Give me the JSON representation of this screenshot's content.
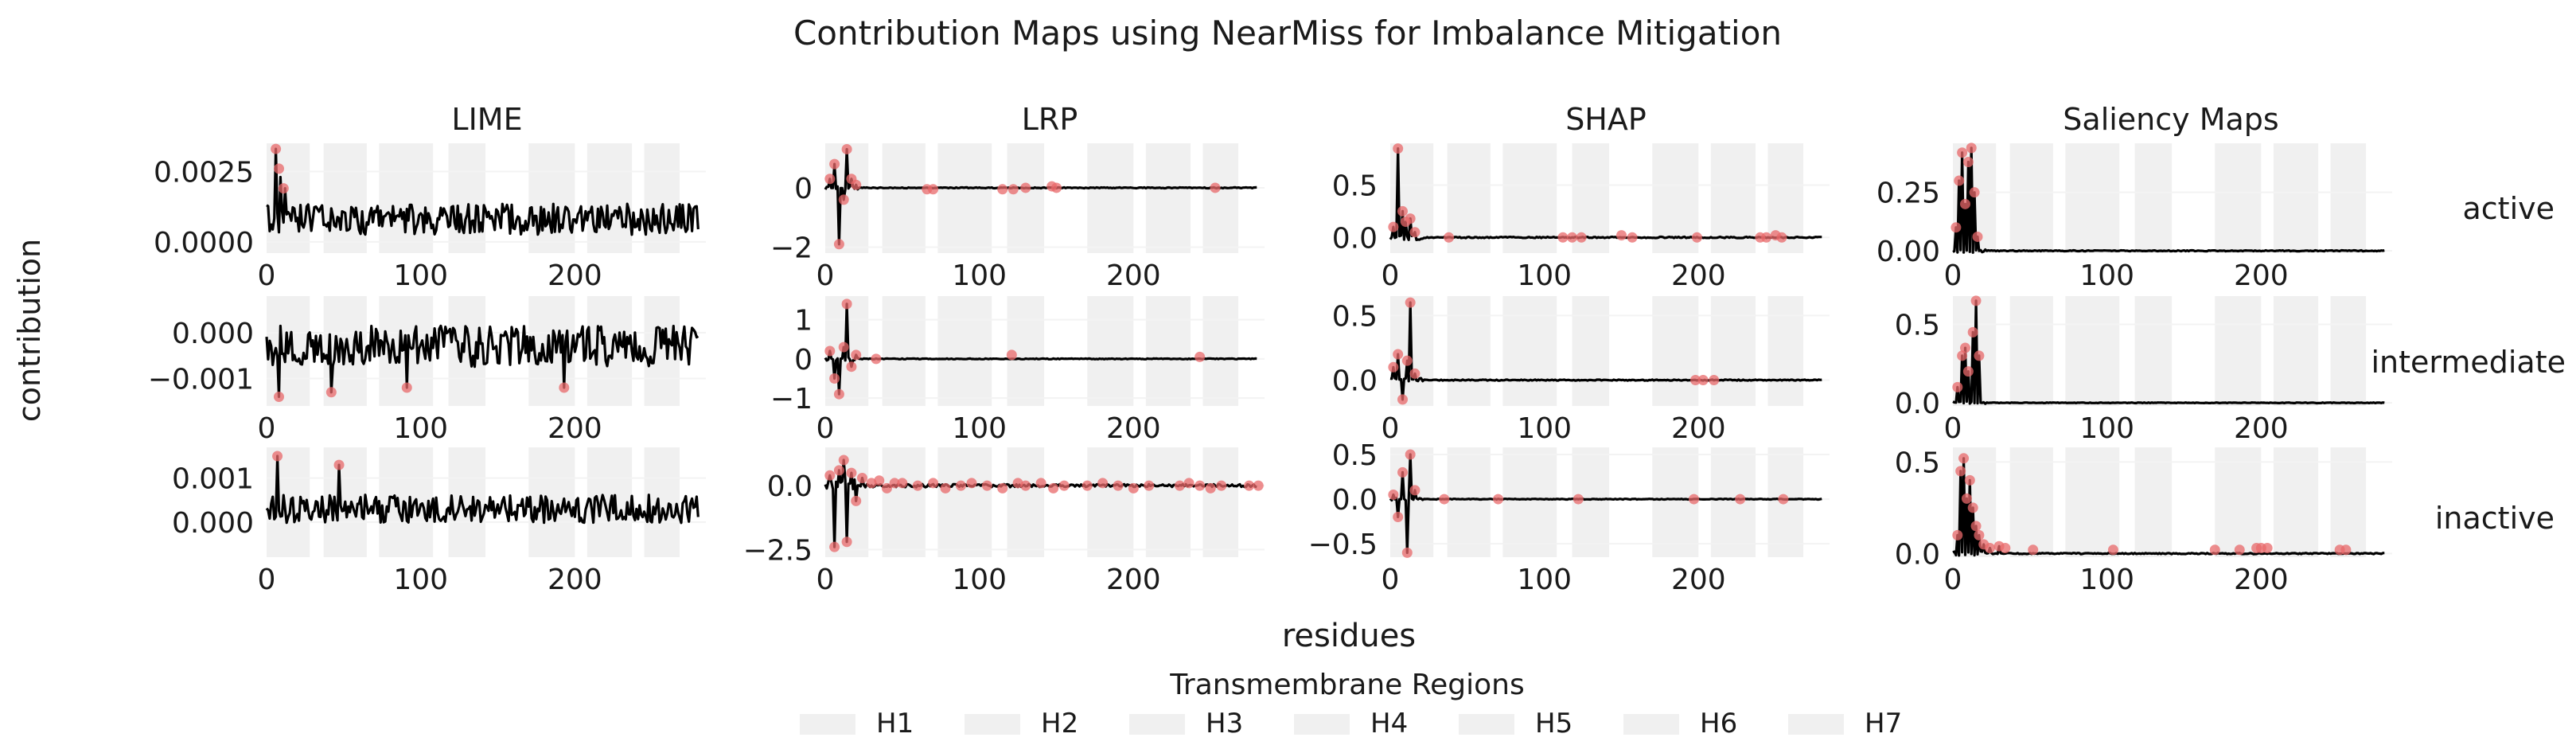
{
  "title": "Contribution Maps using NearMiss for Imbalance Mitigation",
  "xlabel": "residues",
  "ylabel": "contribution",
  "legend": {
    "title": "Transmembrane Regions",
    "entries": [
      "H1",
      "H2",
      "H3",
      "H4",
      "H5",
      "H6",
      "H7"
    ]
  },
  "colors": {
    "line": "#000000",
    "highlight": "#e8686a",
    "region": "#f0f0f0",
    "text": "#1a1a1a"
  },
  "chart_data": {
    "type": "line",
    "columns": [
      "LIME",
      "LRP",
      "SHAP",
      "Saliency Maps"
    ],
    "rows": [
      "active",
      "intermediate",
      "inactive"
    ],
    "xlim": [
      0,
      285
    ],
    "xticks": [
      0,
      100,
      200
    ],
    "transmembrane_regions": [
      {
        "name": "H1",
        "start": 0,
        "end": 28
      },
      {
        "name": "H2",
        "start": 37,
        "end": 65
      },
      {
        "name": "H3",
        "start": 73,
        "end": 108
      },
      {
        "name": "H4",
        "start": 118,
        "end": 142
      },
      {
        "name": "H5",
        "start": 170,
        "end": 200
      },
      {
        "name": "H6",
        "start": 208,
        "end": 237
      },
      {
        "name": "H7",
        "start": 245,
        "end": 268
      }
    ],
    "panels": [
      {
        "col": "LIME",
        "row": "active",
        "ylim": [
          -0.0004,
          0.0035
        ],
        "yticks": [
          0.0,
          0.0025
        ],
        "ytick_labels": [
          "0.0000",
          "0.0025"
        ],
        "seed": 11,
        "base": 0.0008,
        "noise": 0.00055,
        "decay": 1,
        "peaks": [
          [
            6,
            0.0033
          ],
          [
            9,
            0.0023
          ],
          [
            12,
            0.0019
          ]
        ],
        "highlights": [
          [
            6,
            0.0033
          ],
          [
            8,
            0.0026
          ],
          [
            11,
            0.0019
          ]
        ],
        "scale": 0.0004
      },
      {
        "col": "LRP",
        "row": "active",
        "ylim": [
          -2.2,
          1.5
        ],
        "yticks": [
          -2,
          0
        ],
        "ytick_labels": [
          "−2",
          "0"
        ],
        "seed": 12,
        "base": 0.0,
        "noise": 0.015,
        "decay": 0,
        "peaks": [
          [
            3,
            0.3
          ],
          [
            6,
            0.8
          ],
          [
            9,
            -1.9
          ],
          [
            12,
            -0.4
          ],
          [
            14,
            1.3
          ],
          [
            17,
            0.3
          ],
          [
            20,
            0.1
          ]
        ],
        "highlights": [
          [
            3,
            0.3
          ],
          [
            6,
            0.8
          ],
          [
            9,
            -1.9
          ],
          [
            12,
            -0.4
          ],
          [
            14,
            1.3
          ],
          [
            17,
            0.3
          ],
          [
            20,
            0.1
          ],
          [
            66,
            -0.05
          ],
          [
            70,
            -0.05
          ],
          [
            115,
            -0.05
          ],
          [
            122,
            -0.05
          ],
          [
            130,
            0.0
          ],
          [
            147,
            0.05
          ],
          [
            150,
            0.0
          ],
          [
            253,
            0.0
          ]
        ],
        "scale": 0.2
      },
      {
        "col": "SHAP",
        "row": "active",
        "ylim": [
          -0.15,
          0.9
        ],
        "yticks": [
          0.0,
          0.5
        ],
        "ytick_labels": [
          "0.0",
          "0.5"
        ],
        "seed": 13,
        "base": 0.0,
        "noise": 0.006,
        "decay": 0,
        "peaks": [
          [
            2,
            0.1
          ],
          [
            5,
            0.85
          ],
          [
            8,
            0.25
          ],
          [
            10,
            0.15
          ],
          [
            13,
            0.18
          ],
          [
            16,
            0.05
          ]
        ],
        "highlights": [
          [
            2,
            0.1
          ],
          [
            5,
            0.85
          ],
          [
            8,
            0.25
          ],
          [
            10,
            0.15
          ],
          [
            13,
            0.18
          ],
          [
            16,
            0.05
          ],
          [
            38,
            0.0
          ],
          [
            112,
            0.0
          ],
          [
            118,
            0.0
          ],
          [
            124,
            0.0
          ],
          [
            150,
            0.02
          ],
          [
            157,
            0.0
          ],
          [
            199,
            0.0
          ],
          [
            240,
            0.0
          ],
          [
            244,
            0.0
          ],
          [
            250,
            0.02
          ],
          [
            254,
            0.0
          ]
        ],
        "scale": 0.08
      },
      {
        "col": "Saliency Maps",
        "row": "active",
        "ylim": [
          -0.01,
          0.46
        ],
        "yticks": [
          0.0,
          0.25
        ],
        "ytick_labels": [
          "0.00",
          "0.25"
        ],
        "seed": 14,
        "base": 0.0,
        "noise": 0.002,
        "decay": 0,
        "peaks": [
          [
            2,
            0.1
          ],
          [
            4,
            0.3
          ],
          [
            6,
            0.42
          ],
          [
            8,
            0.2
          ],
          [
            10,
            0.38
          ],
          [
            12,
            0.44
          ],
          [
            14,
            0.25
          ],
          [
            16,
            0.06
          ]
        ],
        "highlights": [
          [
            2,
            0.1
          ],
          [
            4,
            0.3
          ],
          [
            6,
            0.42
          ],
          [
            8,
            0.2
          ],
          [
            10,
            0.38
          ],
          [
            12,
            0.44
          ],
          [
            14,
            0.25
          ],
          [
            16,
            0.06
          ]
        ],
        "scale": 0.04
      },
      {
        "col": "LIME",
        "row": "intermediate",
        "ylim": [
          -0.0016,
          0.0008
        ],
        "yticks": [
          -0.001,
          0.0
        ],
        "ytick_labels": [
          "−0.001",
          "0.000"
        ],
        "seed": 21,
        "base": -0.0003,
        "noise": 0.00045,
        "decay": 1,
        "peaks": [
          [
            8,
            -0.0014
          ],
          [
            42,
            -0.0013
          ],
          [
            91,
            -0.0012
          ],
          [
            193,
            -0.0012
          ]
        ],
        "highlights": [
          [
            8,
            -0.0014
          ],
          [
            42,
            -0.0013
          ],
          [
            91,
            -0.0012
          ],
          [
            193,
            -0.0012
          ]
        ],
        "scale": 0.0002
      },
      {
        "col": "LRP",
        "row": "intermediate",
        "ylim": [
          -1.2,
          1.6
        ],
        "yticks": [
          -1,
          0,
          1
        ],
        "ytick_labels": [
          "−1",
          "0",
          "1"
        ],
        "seed": 22,
        "base": 0.0,
        "noise": 0.01,
        "decay": 0,
        "peaks": [
          [
            3,
            0.2
          ],
          [
            6,
            -0.5
          ],
          [
            9,
            -0.9
          ],
          [
            12,
            0.3
          ],
          [
            14,
            1.4
          ],
          [
            17,
            -0.2
          ],
          [
            20,
            0.1
          ]
        ],
        "highlights": [
          [
            3,
            0.2
          ],
          [
            6,
            -0.5
          ],
          [
            9,
            -0.9
          ],
          [
            12,
            0.3
          ],
          [
            14,
            1.4
          ],
          [
            17,
            -0.2
          ],
          [
            20,
            0.1
          ],
          [
            33,
            0.0
          ],
          [
            121,
            0.1
          ],
          [
            243,
            0.05
          ]
        ],
        "scale": 0.1
      },
      {
        "col": "SHAP",
        "row": "intermediate",
        "ylim": [
          -0.2,
          0.65
        ],
        "yticks": [
          0.0,
          0.5
        ],
        "ytick_labels": [
          "0.0",
          "0.5"
        ],
        "seed": 23,
        "base": 0.0,
        "noise": 0.004,
        "decay": 0,
        "peaks": [
          [
            2,
            0.1
          ],
          [
            5,
            0.2
          ],
          [
            8,
            -0.15
          ],
          [
            11,
            0.15
          ],
          [
            13,
            0.6
          ],
          [
            16,
            0.05
          ]
        ],
        "highlights": [
          [
            2,
            0.1
          ],
          [
            5,
            0.2
          ],
          [
            8,
            -0.15
          ],
          [
            11,
            0.15
          ],
          [
            13,
            0.6
          ],
          [
            16,
            0.05
          ],
          [
            198,
            0.0
          ],
          [
            203,
            0.0
          ],
          [
            210,
            0.0
          ]
        ],
        "scale": 0.05
      },
      {
        "col": "Saliency Maps",
        "row": "intermediate",
        "ylim": [
          -0.02,
          0.68
        ],
        "yticks": [
          0.0,
          0.5
        ],
        "ytick_labels": [
          "0.0",
          "0.5"
        ],
        "seed": 24,
        "base": 0.0,
        "noise": 0.002,
        "decay": 0,
        "peaks": [
          [
            3,
            0.1
          ],
          [
            6,
            0.3
          ],
          [
            8,
            0.35
          ],
          [
            10,
            0.2
          ],
          [
            13,
            0.45
          ],
          [
            15,
            0.65
          ],
          [
            17,
            0.3
          ]
        ],
        "highlights": [
          [
            3,
            0.1
          ],
          [
            6,
            0.3
          ],
          [
            8,
            0.35
          ],
          [
            10,
            0.2
          ],
          [
            13,
            0.45
          ],
          [
            15,
            0.65
          ],
          [
            17,
            0.3
          ]
        ],
        "scale": 0.04
      },
      {
        "col": "LIME",
        "row": "inactive",
        "ylim": [
          -0.0008,
          0.0017
        ],
        "yticks": [
          0.0,
          0.001
        ],
        "ytick_labels": [
          "0.000",
          "0.001"
        ],
        "seed": 31,
        "base": 0.0003,
        "noise": 0.00032,
        "decay": 1,
        "peaks": [
          [
            7,
            0.0015
          ],
          [
            47,
            0.0013
          ]
        ],
        "highlights": [
          [
            7,
            0.0015
          ],
          [
            47,
            0.0013
          ]
        ],
        "scale": 0.0002
      },
      {
        "col": "LRP",
        "row": "inactive",
        "ylim": [
          -2.8,
          1.5
        ],
        "yticks": [
          -2.5,
          0.0
        ],
        "ytick_labels": [
          "−2.5",
          "0.0"
        ],
        "seed": 32,
        "base": 0.0,
        "noise": 0.06,
        "decay": 0,
        "peaks": [
          [
            3,
            0.4
          ],
          [
            6,
            -2.4
          ],
          [
            9,
            0.6
          ],
          [
            12,
            1.0
          ],
          [
            14,
            -2.2
          ],
          [
            17,
            0.5
          ],
          [
            20,
            -0.6
          ],
          [
            24,
            0.3
          ]
        ],
        "highlights": [
          [
            3,
            0.4
          ],
          [
            6,
            -2.4
          ],
          [
            9,
            0.6
          ],
          [
            12,
            1.0
          ],
          [
            14,
            -2.2
          ],
          [
            17,
            0.5
          ],
          [
            20,
            -0.6
          ],
          [
            24,
            0.3
          ],
          [
            30,
            0.1
          ],
          [
            35,
            0.2
          ],
          [
            40,
            -0.1
          ],
          [
            45,
            0.1
          ],
          [
            50,
            0.1
          ],
          [
            60,
            0.0
          ],
          [
            70,
            0.1
          ],
          [
            78,
            -0.1
          ],
          [
            88,
            0.0
          ],
          [
            95,
            0.1
          ],
          [
            105,
            0.0
          ],
          [
            115,
            -0.1
          ],
          [
            125,
            0.1
          ],
          [
            130,
            0.0
          ],
          [
            140,
            0.1
          ],
          [
            148,
            -0.1
          ],
          [
            155,
            0.0
          ],
          [
            170,
            0.0
          ],
          [
            180,
            0.1
          ],
          [
            190,
            0.0
          ],
          [
            200,
            -0.1
          ],
          [
            210,
            0.0
          ],
          [
            230,
            0.0
          ],
          [
            236,
            0.1
          ],
          [
            243,
            0.0
          ],
          [
            250,
            -0.1
          ],
          [
            257,
            0.0
          ],
          [
            275,
            0.0
          ],
          [
            281,
            0.0
          ]
        ],
        "scale": 0.15
      },
      {
        "col": "SHAP",
        "row": "inactive",
        "ylim": [
          -0.65,
          0.58
        ],
        "yticks": [
          -0.5,
          0.0,
          0.5
        ],
        "ytick_labels": [
          "−0.5",
          "0.0",
          "0.5"
        ],
        "seed": 33,
        "base": 0.0,
        "noise": 0.004,
        "decay": 0,
        "peaks": [
          [
            2,
            0.05
          ],
          [
            5,
            -0.2
          ],
          [
            8,
            0.3
          ],
          [
            11,
            -0.6
          ],
          [
            13,
            0.5
          ],
          [
            16,
            0.1
          ]
        ],
        "highlights": [
          [
            2,
            0.05
          ],
          [
            5,
            -0.2
          ],
          [
            8,
            0.3
          ],
          [
            11,
            -0.6
          ],
          [
            13,
            0.5
          ],
          [
            16,
            0.1
          ],
          [
            35,
            0.0
          ],
          [
            70,
            0.0
          ],
          [
            122,
            0.0
          ],
          [
            197,
            0.0
          ],
          [
            227,
            0.0
          ],
          [
            255,
            0.0
          ]
        ],
        "scale": 0.05
      },
      {
        "col": "Saliency Maps",
        "row": "inactive",
        "ylim": [
          -0.02,
          0.58
        ],
        "yticks": [
          0.0,
          0.5
        ],
        "ytick_labels": [
          "0.0",
          "0.5"
        ],
        "seed": 34,
        "base": 0.0,
        "noise": 0.003,
        "decay": 0,
        "peaks": [
          [
            3,
            0.1
          ],
          [
            5,
            0.45
          ],
          [
            7,
            0.52
          ],
          [
            9,
            0.3
          ],
          [
            11,
            0.4
          ],
          [
            13,
            0.25
          ],
          [
            15,
            0.15
          ],
          [
            17,
            0.1
          ],
          [
            20,
            0.05
          ],
          [
            24,
            0.03
          ],
          [
            30,
            0.04
          ]
        ],
        "highlights": [
          [
            3,
            0.1
          ],
          [
            5,
            0.45
          ],
          [
            7,
            0.52
          ],
          [
            9,
            0.3
          ],
          [
            11,
            0.4
          ],
          [
            13,
            0.25
          ],
          [
            15,
            0.15
          ],
          [
            17,
            0.1
          ],
          [
            20,
            0.05
          ],
          [
            24,
            0.03
          ],
          [
            30,
            0.04
          ],
          [
            34,
            0.03
          ],
          [
            52,
            0.02
          ],
          [
            104,
            0.02
          ],
          [
            170,
            0.02
          ],
          [
            186,
            0.02
          ],
          [
            197,
            0.03
          ],
          [
            200,
            0.03
          ],
          [
            204,
            0.03
          ],
          [
            251,
            0.02
          ],
          [
            255,
            0.02
          ]
        ],
        "scale": 0.04
      }
    ]
  }
}
